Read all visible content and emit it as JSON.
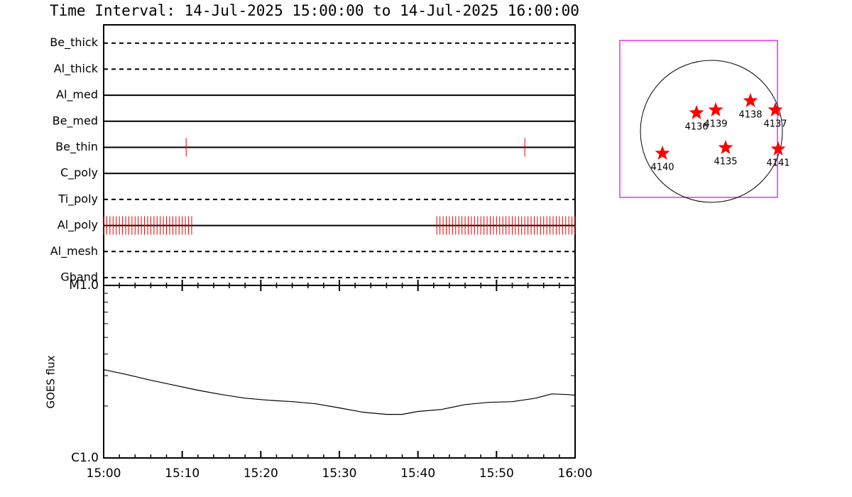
{
  "chart_data": {
    "type": "timeline",
    "title": "Time Interval: 14-Jul-2025 15:00:00 to 14-Jul-2025 16:00:00",
    "xlim": [
      0,
      60
    ],
    "xticks": [
      {
        "value": 0,
        "label": "15:00"
      },
      {
        "value": 10,
        "label": "15:10"
      },
      {
        "value": 20,
        "label": "15:20"
      },
      {
        "value": 30,
        "label": "15:30"
      },
      {
        "value": 40,
        "label": "15:40"
      },
      {
        "value": 50,
        "label": "15:50"
      },
      {
        "value": 60,
        "label": "16:00"
      }
    ],
    "xminor": [
      2,
      4,
      6,
      8,
      12,
      14,
      16,
      18,
      22,
      24,
      26,
      28,
      32,
      34,
      36,
      38,
      42,
      44,
      46,
      48,
      52,
      54,
      56,
      58
    ],
    "event_color": "#e00000",
    "filters": [
      {
        "name": "Be_thick",
        "style": "dashed",
        "events": []
      },
      {
        "name": "Al_thick",
        "style": "dashed",
        "events": []
      },
      {
        "name": "Al_med",
        "style": "solid",
        "events": []
      },
      {
        "name": "Be_med",
        "style": "solid",
        "events": []
      },
      {
        "name": "Be_thin",
        "style": "solid",
        "events": [
          10.5,
          53.6
        ]
      },
      {
        "name": "C_poly",
        "style": "solid",
        "events": []
      },
      {
        "name": "Ti_poly",
        "style": "dashed",
        "events": []
      },
      {
        "name": "Al_poly",
        "style": "solid",
        "events": [
          0,
          0.4,
          0.8,
          1.2,
          1.6,
          2,
          2.4,
          2.8,
          3.2,
          3.6,
          4,
          4.4,
          4.8,
          5.2,
          5.6,
          6,
          6.4,
          6.8,
          7.2,
          7.6,
          8,
          8.4,
          8.8,
          9.2,
          9.6,
          10,
          10.4,
          10.8,
          11.2,
          42.4,
          42.8,
          43.2,
          43.6,
          44,
          44.4,
          44.8,
          45.2,
          45.6,
          46,
          46.4,
          46.8,
          47.2,
          47.6,
          48,
          48.4,
          48.8,
          49.2,
          49.6,
          50,
          50.4,
          50.8,
          51.2,
          51.6,
          52,
          52.4,
          52.8,
          53.2,
          53.6,
          54,
          54.4,
          54.8,
          55.2,
          55.6,
          56,
          56.4,
          56.8,
          57.2,
          57.6,
          58,
          58.4,
          58.8,
          59.2,
          59.6,
          60
        ]
      },
      {
        "name": "Al_mesh",
        "style": "dashed",
        "events": []
      },
      {
        "name": "Gband",
        "style": "dashed",
        "events": []
      }
    ],
    "goes": {
      "ylabel": "GOES flux",
      "log": true,
      "ylim": [
        1e-06,
        1e-05
      ],
      "yticks": [
        {
          "value": 1e-06,
          "label": "C1.0"
        },
        {
          "value": 1e-05,
          "label": "M1.0"
        }
      ],
      "yminor": [
        2e-06,
        3e-06,
        4e-06,
        5e-06,
        6e-06,
        7e-06,
        8e-06,
        9e-06
      ],
      "x": [
        0,
        3,
        6,
        9,
        12,
        15,
        18,
        21,
        24,
        27,
        30,
        33,
        36,
        38,
        40,
        43,
        46,
        49,
        52,
        55,
        57,
        59,
        60
      ],
      "values": [
        3.25e-06,
        3.04e-06,
        2.82e-06,
        2.64e-06,
        2.47e-06,
        2.33e-06,
        2.22e-06,
        2.16e-06,
        2.12e-06,
        2.06e-06,
        1.95e-06,
        1.84e-06,
        1.79e-06,
        1.79e-06,
        1.86e-06,
        1.91e-06,
        2.04e-06,
        2.1e-06,
        2.12e-06,
        2.22e-06,
        2.35e-06,
        2.33e-06,
        2.31e-06
      ],
      "color": "#000000"
    },
    "sun_map": {
      "box_color": "#e000e0",
      "star_color": "#ff0000",
      "regions": [
        "4136",
        "4139",
        "4138",
        "4137",
        "4140",
        "4135",
        "4141"
      ]
    }
  }
}
